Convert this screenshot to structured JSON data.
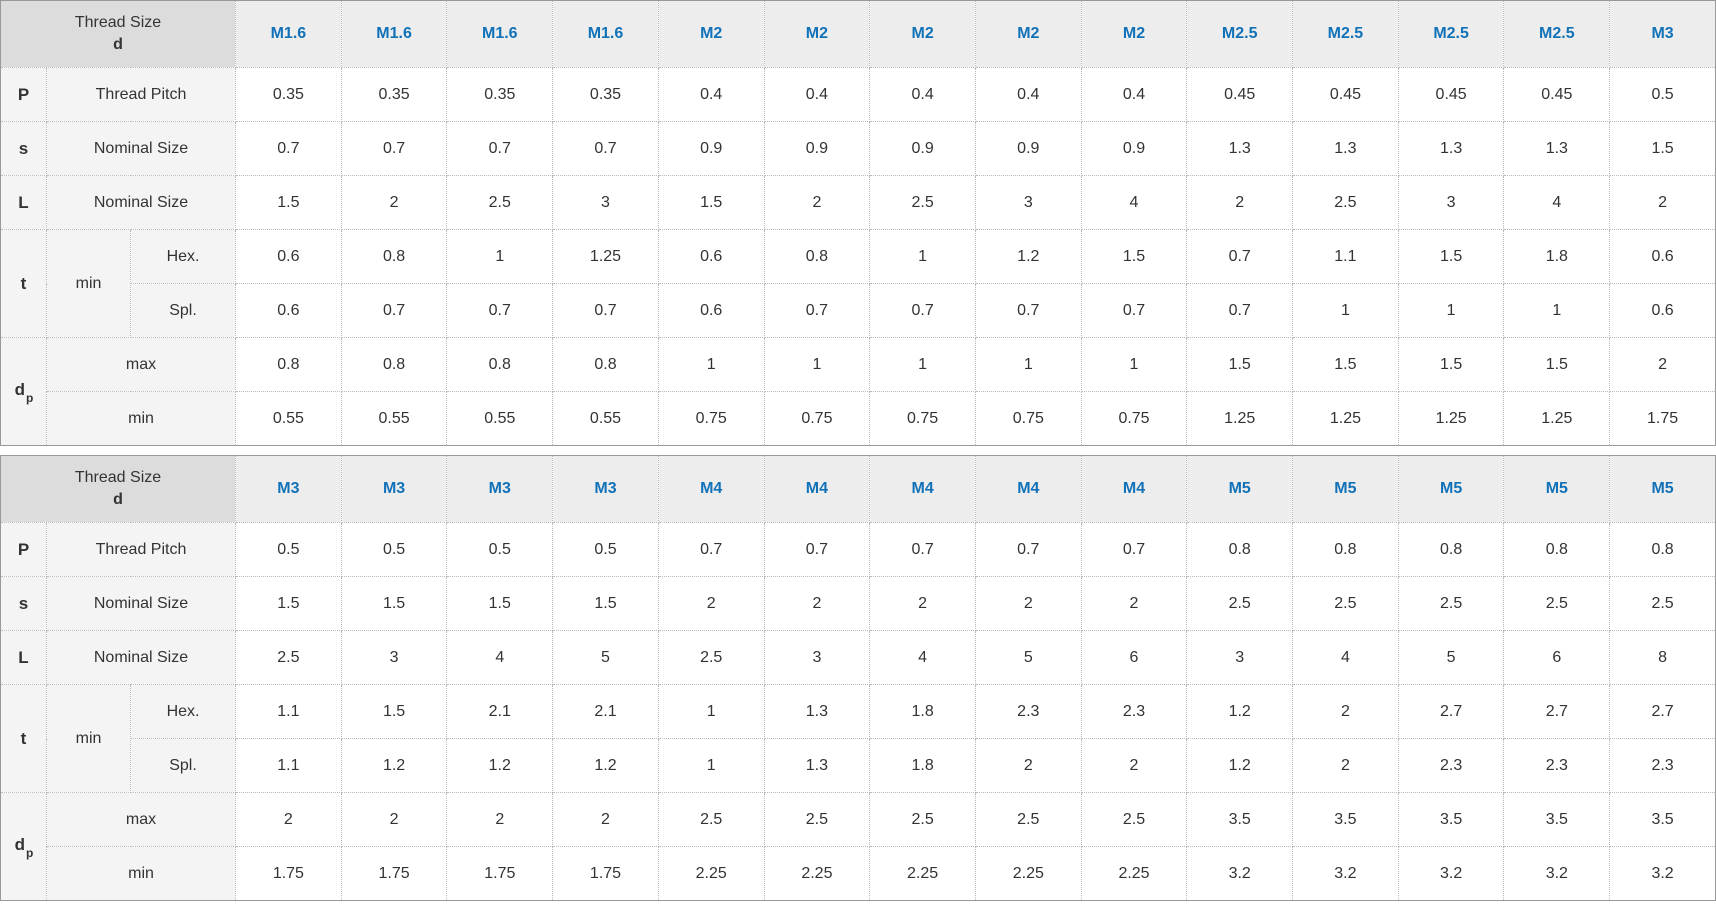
{
  "colors": {
    "accent_blue": "#1272b8",
    "corner_bg": "#dcdcdc",
    "colhead_bg": "#ededed",
    "label_bg": "#f4f4f4",
    "border_dotted": "#b9b9b9",
    "border_outer": "#999999"
  },
  "corner": {
    "line1": "Thread Size",
    "line2": "d"
  },
  "tables": [
    {
      "name": "thread-spec-table-1",
      "thread_sizes": [
        "M1.6",
        "M1.6",
        "M1.6",
        "M1.6",
        "M2",
        "M2",
        "M2",
        "M2",
        "M2",
        "M2.5",
        "M2.5",
        "M2.5",
        "M2.5",
        "M3"
      ],
      "rows": [
        {
          "type": "simple",
          "key": "P",
          "label": "Thread Pitch",
          "values": [
            "0.35",
            "0.35",
            "0.35",
            "0.35",
            "0.4",
            "0.4",
            "0.4",
            "0.4",
            "0.4",
            "0.45",
            "0.45",
            "0.45",
            "0.45",
            "0.5"
          ]
        },
        {
          "type": "simple",
          "key": "s",
          "label": "Nominal Size",
          "values": [
            "0.7",
            "0.7",
            "0.7",
            "0.7",
            "0.9",
            "0.9",
            "0.9",
            "0.9",
            "0.9",
            "1.3",
            "1.3",
            "1.3",
            "1.3",
            "1.5"
          ]
        },
        {
          "type": "simple",
          "key": "L",
          "label": "Nominal Size",
          "values": [
            "1.5",
            "2",
            "2.5",
            "3",
            "1.5",
            "2",
            "2.5",
            "3",
            "4",
            "2",
            "2.5",
            "3",
            "4",
            "2"
          ]
        },
        {
          "type": "group2",
          "key": "t",
          "mid": "min",
          "subrows": [
            {
              "label": "Hex.",
              "values": [
                "0.6",
                "0.8",
                "1",
                "1.25",
                "0.6",
                "0.8",
                "1",
                "1.2",
                "1.5",
                "0.7",
                "1.1",
                "1.5",
                "1.8",
                "0.6"
              ]
            },
            {
              "label": "Spl.",
              "values": [
                "0.6",
                "0.7",
                "0.7",
                "0.7",
                "0.6",
                "0.7",
                "0.7",
                "0.7",
                "0.7",
                "0.7",
                "1",
                "1",
                "1",
                "0.6"
              ]
            }
          ]
        },
        {
          "type": "group1",
          "key": "d",
          "key_sub": "p",
          "subrows": [
            {
              "label": "max",
              "values": [
                "0.8",
                "0.8",
                "0.8",
                "0.8",
                "1",
                "1",
                "1",
                "1",
                "1",
                "1.5",
                "1.5",
                "1.5",
                "1.5",
                "2"
              ]
            },
            {
              "label": "min",
              "values": [
                "0.55",
                "0.55",
                "0.55",
                "0.55",
                "0.75",
                "0.75",
                "0.75",
                "0.75",
                "0.75",
                "1.25",
                "1.25",
                "1.25",
                "1.25",
                "1.75"
              ]
            }
          ]
        }
      ]
    },
    {
      "name": "thread-spec-table-2",
      "thread_sizes": [
        "M3",
        "M3",
        "M3",
        "M3",
        "M4",
        "M4",
        "M4",
        "M4",
        "M4",
        "M5",
        "M5",
        "M5",
        "M5",
        "M5"
      ],
      "rows": [
        {
          "type": "simple",
          "key": "P",
          "label": "Thread Pitch",
          "values": [
            "0.5",
            "0.5",
            "0.5",
            "0.5",
            "0.7",
            "0.7",
            "0.7",
            "0.7",
            "0.7",
            "0.8",
            "0.8",
            "0.8",
            "0.8",
            "0.8"
          ]
        },
        {
          "type": "simple",
          "key": "s",
          "label": "Nominal Size",
          "values": [
            "1.5",
            "1.5",
            "1.5",
            "1.5",
            "2",
            "2",
            "2",
            "2",
            "2",
            "2.5",
            "2.5",
            "2.5",
            "2.5",
            "2.5"
          ]
        },
        {
          "type": "simple",
          "key": "L",
          "label": "Nominal Size",
          "values": [
            "2.5",
            "3",
            "4",
            "5",
            "2.5",
            "3",
            "4",
            "5",
            "6",
            "3",
            "4",
            "5",
            "6",
            "8"
          ]
        },
        {
          "type": "group2",
          "key": "t",
          "mid": "min",
          "subrows": [
            {
              "label": "Hex.",
              "values": [
                "1.1",
                "1.5",
                "2.1",
                "2.1",
                "1",
                "1.3",
                "1.8",
                "2.3",
                "2.3",
                "1.2",
                "2",
                "2.7",
                "2.7",
                "2.7"
              ]
            },
            {
              "label": "Spl.",
              "values": [
                "1.1",
                "1.2",
                "1.2",
                "1.2",
                "1",
                "1.3",
                "1.8",
                "2",
                "2",
                "1.2",
                "2",
                "2.3",
                "2.3",
                "2.3"
              ]
            }
          ]
        },
        {
          "type": "group1",
          "key": "d",
          "key_sub": "p",
          "subrows": [
            {
              "label": "max",
              "values": [
                "2",
                "2",
                "2",
                "2",
                "2.5",
                "2.5",
                "2.5",
                "2.5",
                "2.5",
                "3.5",
                "3.5",
                "3.5",
                "3.5",
                "3.5"
              ]
            },
            {
              "label": "min",
              "values": [
                "1.75",
                "1.75",
                "1.75",
                "1.75",
                "2.25",
                "2.25",
                "2.25",
                "2.25",
                "2.25",
                "3.2",
                "3.2",
                "3.2",
                "3.2",
                "3.2"
              ]
            }
          ]
        }
      ]
    }
  ]
}
